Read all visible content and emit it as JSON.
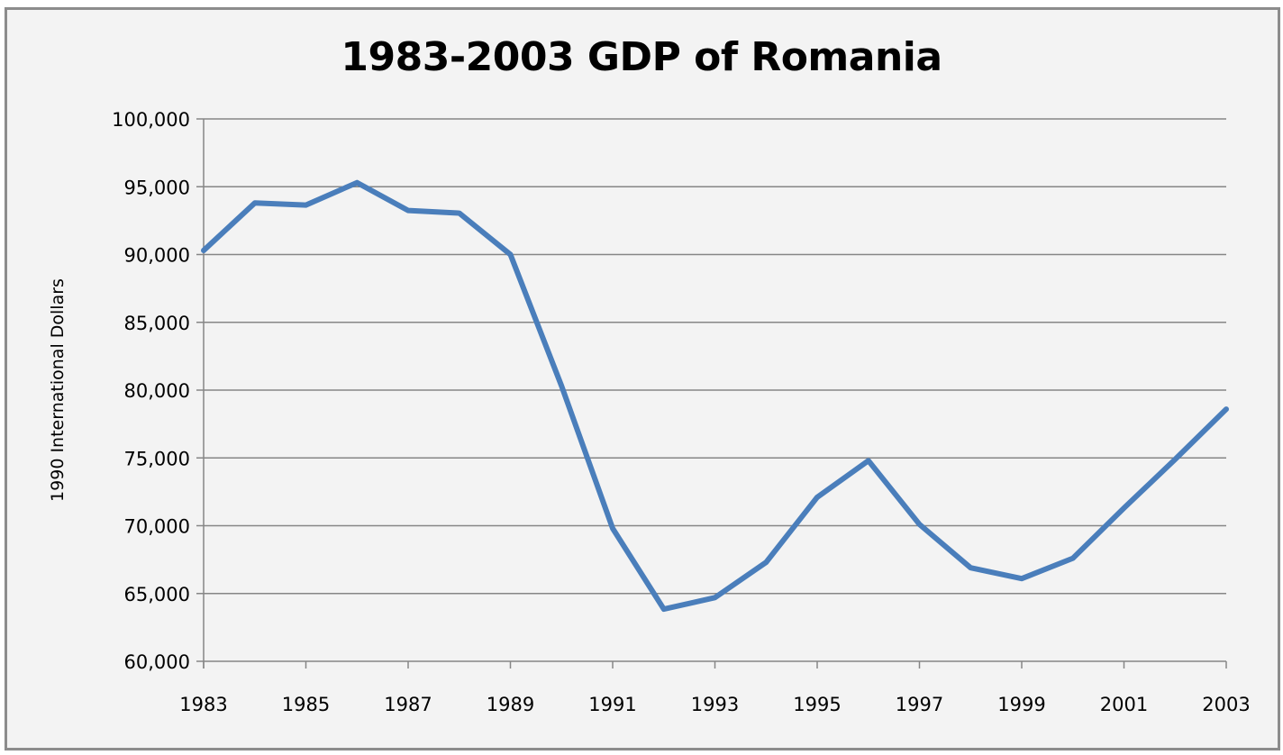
{
  "chart_data": {
    "type": "line",
    "title": "1983-2003 GDP of Romania",
    "xlabel": "",
    "ylabel": "1990 International Dollars",
    "x": [
      1983,
      1984,
      1985,
      1986,
      1987,
      1988,
      1989,
      1990,
      1991,
      1992,
      1993,
      1994,
      1995,
      1996,
      1997,
      1998,
      1999,
      2000,
      2001,
      2002,
      2003
    ],
    "series": [
      {
        "name": "GDP",
        "color": "#4a7ebb",
        "values": [
          90300,
          93800,
          93650,
          95300,
          93250,
          93050,
          90000,
          80300,
          69800,
          63850,
          64700,
          67300,
          72100,
          74800,
          70100,
          66900,
          66100,
          67600,
          71300,
          74900,
          78600
        ]
      }
    ],
    "ylim": [
      60000,
      100000
    ],
    "yticks": [
      "60,000",
      "65,000",
      "70,000",
      "75,000",
      "80,000",
      "85,000",
      "90,000",
      "95,000",
      "100,000"
    ],
    "xticks": [
      "1983",
      "1985",
      "1987",
      "1989",
      "1991",
      "1993",
      "1995",
      "1997",
      "1999",
      "2001",
      "2003"
    ],
    "grid": true,
    "legend": null
  }
}
